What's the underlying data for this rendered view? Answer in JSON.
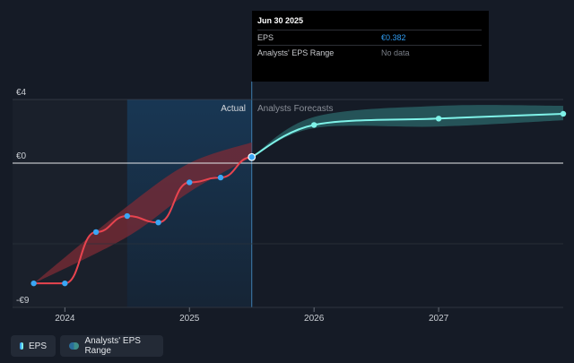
{
  "tooltip": {
    "date": "Jun 30 2025",
    "rows": [
      {
        "label": "EPS",
        "value": "€0.382"
      },
      {
        "label": "Analysts' EPS Range",
        "value": "No data"
      }
    ]
  },
  "labels": {
    "actual": "Actual",
    "forecast": "Analysts Forecasts"
  },
  "legend": [
    {
      "label": "EPS",
      "color": "#3aa6f5",
      "color2": "#7ff2e8"
    },
    {
      "label": "Analysts' EPS Range",
      "color": "#2a6d9a",
      "color2": "#3e8f8a"
    }
  ],
  "colors": {
    "background": "#151b26",
    "actual_line": "#e8444f",
    "forecast_line": "#7ff2e8",
    "point": "#3aa6f5",
    "forecast_band": "#2c6b6d",
    "actual_band": "#7c2b36",
    "past_band": "#1e6aa8"
  },
  "chart_data": {
    "type": "line",
    "y_ticks": [
      {
        "value": 4,
        "label": "€4"
      },
      {
        "value": 0,
        "label": "€0"
      },
      {
        "value": -9,
        "label": "-€9"
      }
    ],
    "x_ticks": [
      {
        "value": 2024.0,
        "label": "2024"
      },
      {
        "value": 2025.0,
        "label": "2025"
      },
      {
        "value": 2026.0,
        "label": "2026"
      },
      {
        "value": 2027.0,
        "label": "2027"
      }
    ],
    "xlim": [
      2023.58,
      2028.0
    ],
    "ylim": [
      -9,
      4
    ],
    "past_range": [
      2024.5,
      2025.5
    ],
    "series": [
      {
        "name": "EPS",
        "x": [
          2023.75,
          2024.0,
          2024.25,
          2024.5,
          2024.75,
          2025.0,
          2025.25,
          2025.5
        ],
        "y": [
          -7.5,
          -7.5,
          -4.3,
          -3.3,
          -3.7,
          -1.2,
          -0.9,
          0.382
        ]
      },
      {
        "x": [
          2025.5,
          2026.0,
          2027.0,
          2028.0
        ],
        "y": [
          0.382,
          2.4,
          2.8,
          3.1
        ]
      }
    ],
    "actual_range": {
      "x": [
        2023.75,
        2024.5,
        2025.0,
        2025.5
      ],
      "low": [
        -7.5,
        -4.6,
        -1.8,
        0.382
      ],
      "high": [
        -7.5,
        -2.7,
        0.0,
        1.3
      ]
    },
    "forecast_range": {
      "x": [
        2025.5,
        2026.0,
        2027.0,
        2028.0
      ],
      "low": [
        0.382,
        2.2,
        2.3,
        2.7
      ],
      "high": [
        0.382,
        2.9,
        3.6,
        3.6
      ]
    }
  }
}
